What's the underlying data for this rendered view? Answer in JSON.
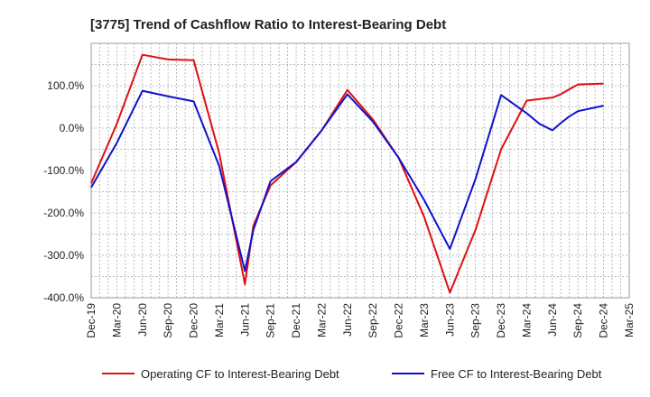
{
  "chart_data": {
    "type": "line",
    "title": "[3775]  Trend of Cashflow Ratio to Interest-Bearing Debt",
    "xlabel": "",
    "ylabel": "",
    "ylim": [
      -400,
      200
    ],
    "yticks": [
      100,
      0,
      -100,
      -200,
      -300,
      -400
    ],
    "ytick_labels": [
      "100.0%",
      "0.0%",
      "-100.0%",
      "-200.0%",
      "-300.0%",
      "-400.0%"
    ],
    "x": [
      "Dec-19",
      "Mar-20",
      "Jun-20",
      "Sep-20",
      "Dec-20",
      "Mar-21",
      "Jun-21",
      "Sep-21",
      "Dec-21",
      "Mar-22",
      "Jun-22",
      "Sep-22",
      "Dec-22",
      "Mar-23",
      "Jun-23",
      "Sep-23",
      "Dec-23",
      "Mar-24",
      "Jun-24",
      "Sep-24",
      "Dec-24",
      "Mar-25"
    ],
    "grid": true,
    "legend": "bottom",
    "series": [
      {
        "name": "Operating CF to Interest-Bearing Debt",
        "color": "#dd1111",
        "points": [
          {
            "x": 0,
            "y": -130
          },
          {
            "x": 1,
            "y": 10
          },
          {
            "x": 2,
            "y": 173
          },
          {
            "x": 3,
            "y": 162
          },
          {
            "x": 4,
            "y": 160
          },
          {
            "x": 5,
            "y": -60
          },
          {
            "x": 6,
            "y": -368
          },
          {
            "x": 6.33,
            "y": -230
          },
          {
            "x": 7,
            "y": -135
          },
          {
            "x": 8,
            "y": -80
          },
          {
            "x": 9,
            "y": -5
          },
          {
            "x": 10,
            "y": 90
          },
          {
            "x": 11,
            "y": 20
          },
          {
            "x": 12,
            "y": -70
          },
          {
            "x": 13,
            "y": -210
          },
          {
            "x": 14,
            "y": -388
          },
          {
            "x": 15,
            "y": -240
          },
          {
            "x": 16,
            "y": -50
          },
          {
            "x": 17,
            "y": 65
          },
          {
            "x": 18,
            "y": 72
          },
          {
            "x": 18.33,
            "y": 80
          },
          {
            "x": 18.67,
            "y": 92
          },
          {
            "x": 19,
            "y": 103
          },
          {
            "x": 20,
            "y": 105
          }
        ]
      },
      {
        "name": "Free CF to Interest-Bearing Debt",
        "color": "#1111cc",
        "points": [
          {
            "x": 0,
            "y": -140
          },
          {
            "x": 1,
            "y": -35
          },
          {
            "x": 2,
            "y": 88
          },
          {
            "x": 3,
            "y": 75
          },
          {
            "x": 4,
            "y": 63
          },
          {
            "x": 5,
            "y": -90
          },
          {
            "x": 6,
            "y": -337
          },
          {
            "x": 6.33,
            "y": -240
          },
          {
            "x": 7,
            "y": -125
          },
          {
            "x": 8,
            "y": -80
          },
          {
            "x": 9,
            "y": -5
          },
          {
            "x": 10,
            "y": 80
          },
          {
            "x": 11,
            "y": 15
          },
          {
            "x": 12,
            "y": -70
          },
          {
            "x": 13,
            "y": -170
          },
          {
            "x": 14,
            "y": -285
          },
          {
            "x": 15,
            "y": -120
          },
          {
            "x": 16,
            "y": 78
          },
          {
            "x": 17,
            "y": 35
          },
          {
            "x": 17.5,
            "y": 10
          },
          {
            "x": 18,
            "y": -5
          },
          {
            "x": 18.33,
            "y": 12
          },
          {
            "x": 18.67,
            "y": 28
          },
          {
            "x": 19,
            "y": 40
          },
          {
            "x": 20,
            "y": 53
          }
        ]
      }
    ]
  }
}
